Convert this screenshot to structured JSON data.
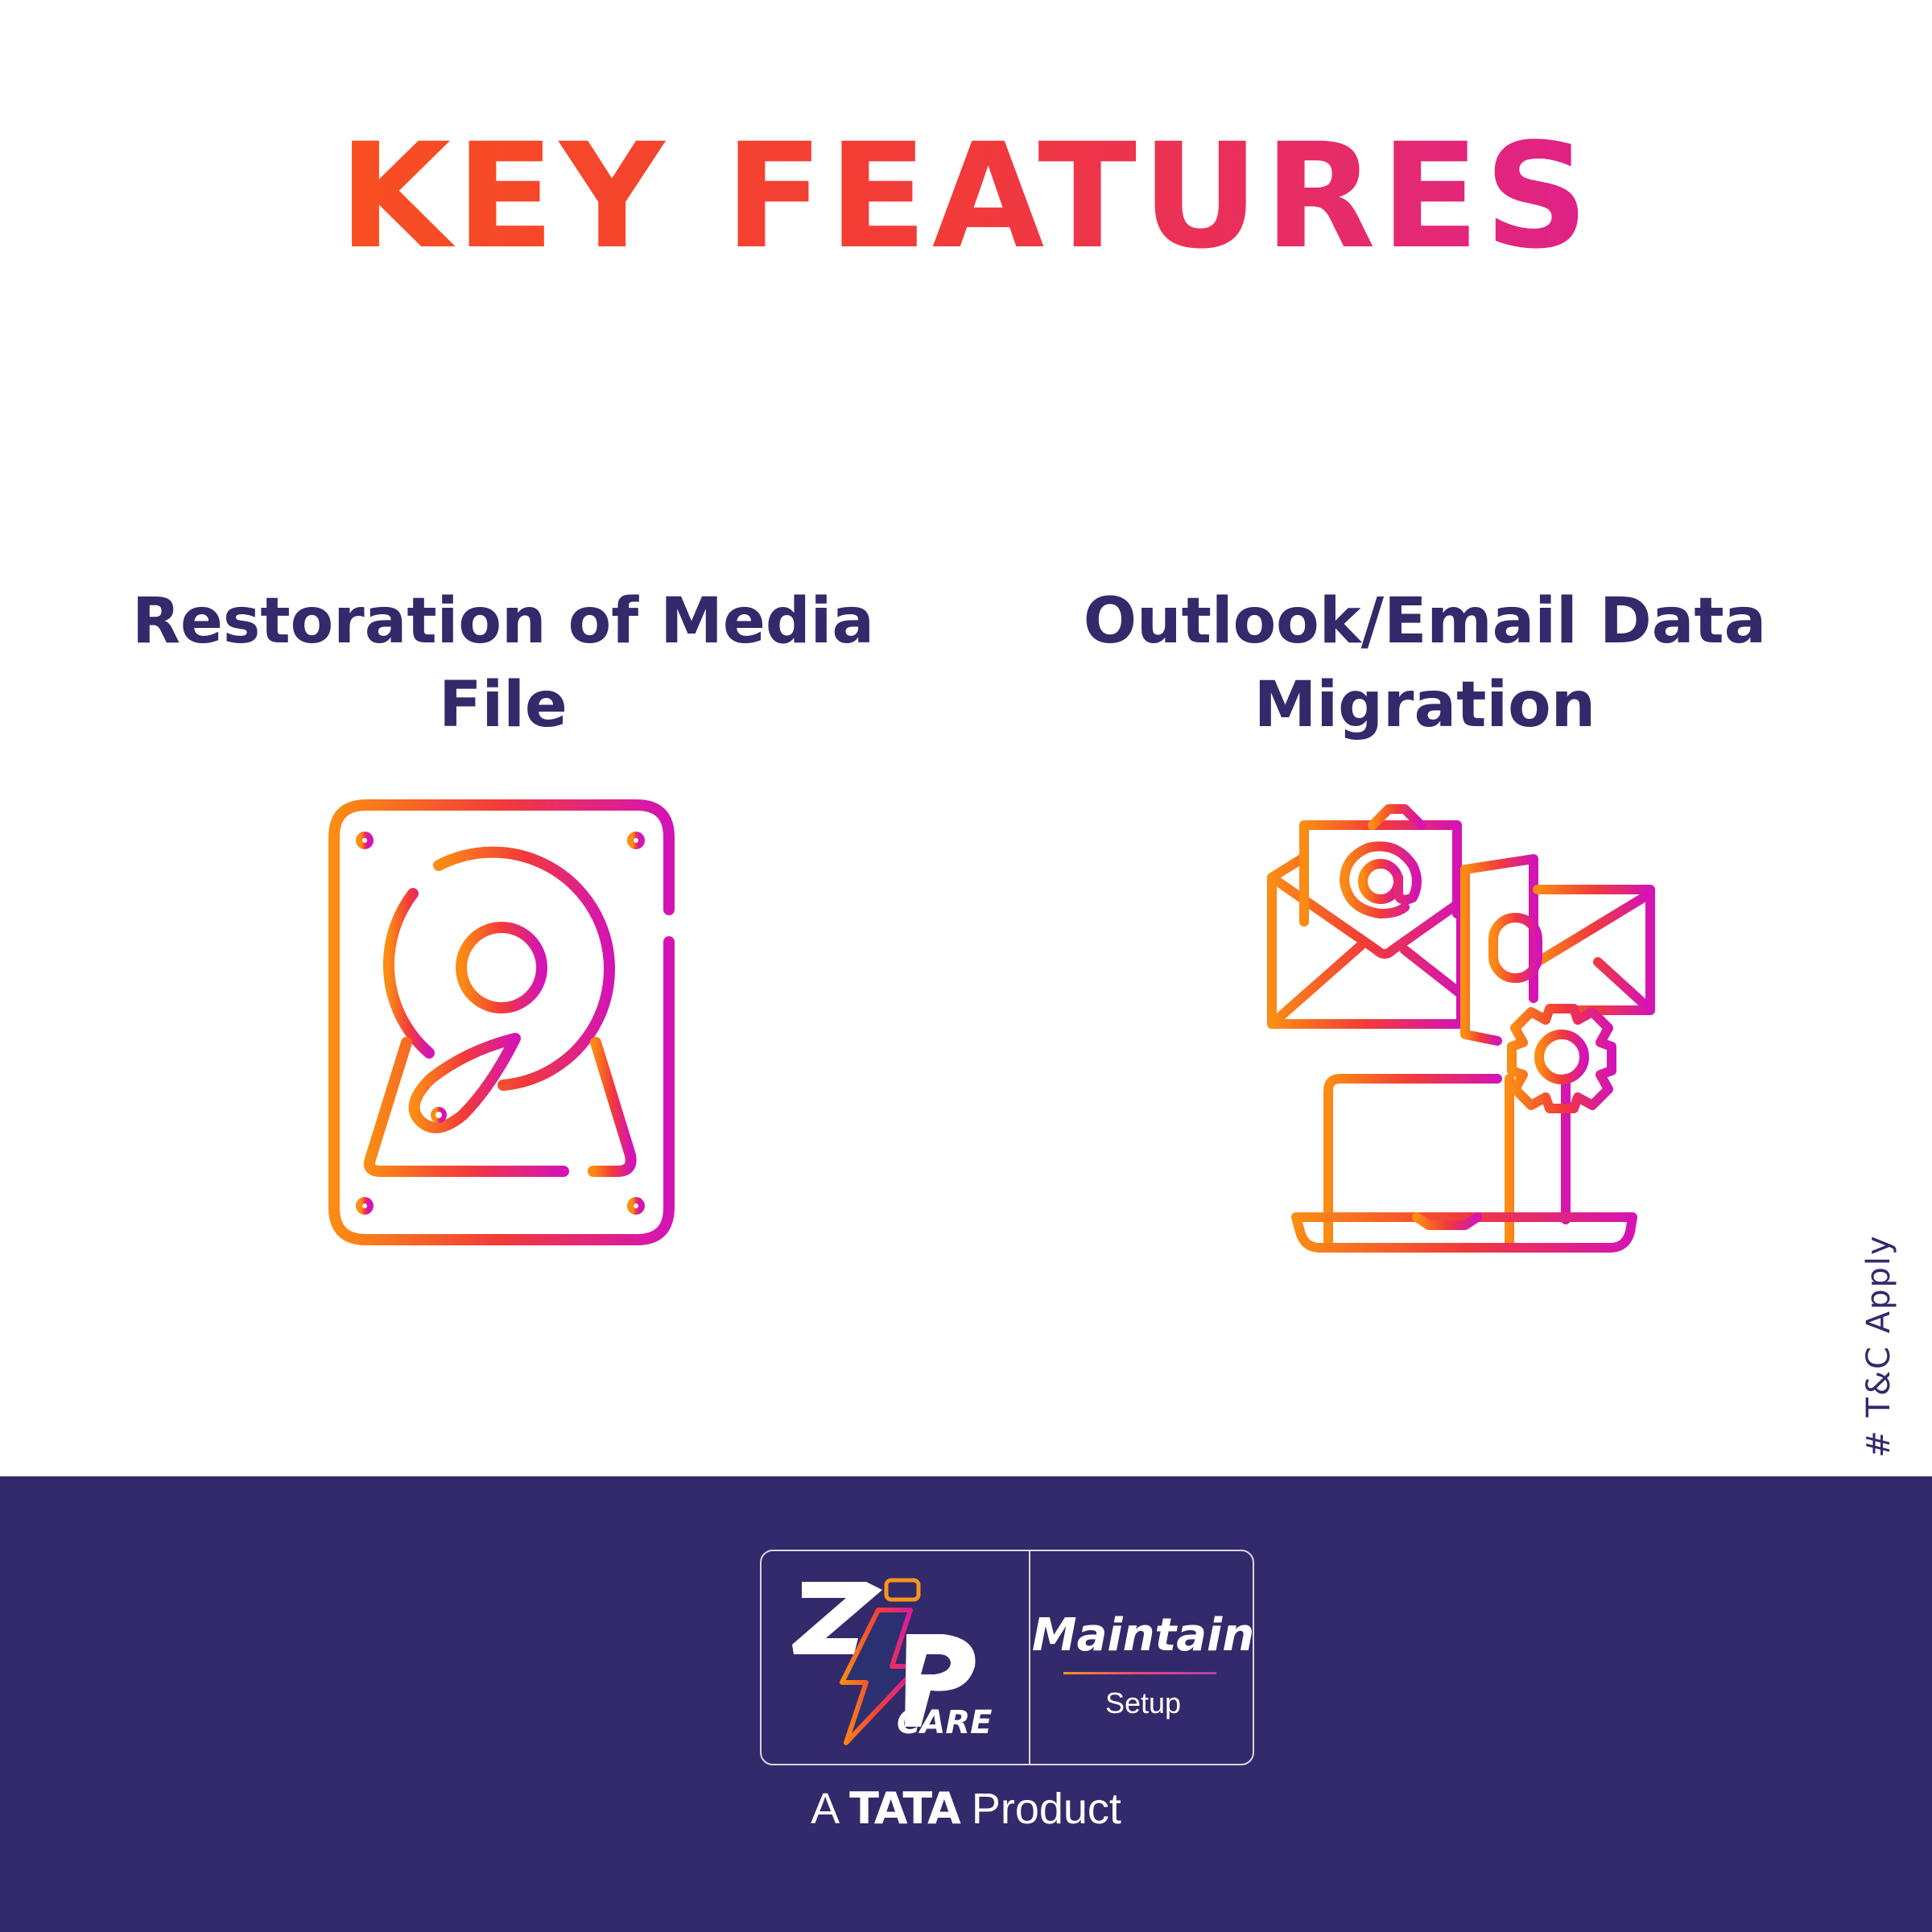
{
  "header": {
    "title": "KEY FEATURES"
  },
  "features": [
    {
      "line1": "Restoration of Media",
      "line2": "File",
      "icon": "hard-disk-icon"
    },
    {
      "line1": "Outlook/Email Data",
      "line2": "Migration",
      "icon": "email-migration-icon"
    }
  ],
  "disclaimer": "# T&C Apply",
  "footer": {
    "logo": {
      "brand": "ZIP",
      "care": "CARE",
      "plan": "Maintain",
      "plan_sub": "Setup"
    },
    "tagline_prefix": "A",
    "tagline_brand": "TATA",
    "tagline_suffix": "Product"
  },
  "colors": {
    "gradient_start": "#fb8c14",
    "gradient_mid": "#f23a3a",
    "gradient_end": "#d414b4",
    "navy": "#332a6b"
  }
}
